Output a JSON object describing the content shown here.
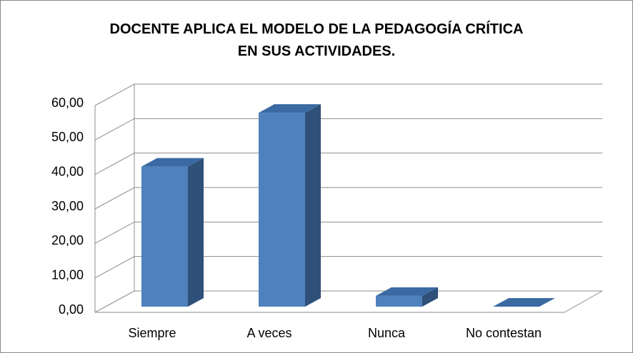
{
  "chart_data": {
    "type": "bar3d",
    "title": "DOCENTE APLICA EL MODELO DE LA PEDAGOGÍA CRÍTICA EN SUS ACTIVIDADES.",
    "categories": [
      "Siempre",
      "A veces",
      "Nunca",
      "No contestan"
    ],
    "values": [
      40.63,
      56.25,
      3.13,
      0
    ],
    "color": "#4f81bd",
    "ylim": [
      0,
      60
    ],
    "yticks": [
      {
        "value": 0,
        "label": "0,00"
      },
      {
        "value": 10,
        "label": "10,00"
      },
      {
        "value": 20,
        "label": "20,00"
      },
      {
        "value": 30,
        "label": "30,00"
      },
      {
        "value": 40,
        "label": "40,00"
      },
      {
        "value": 50,
        "label": "50,00"
      },
      {
        "value": 60,
        "label": "60,00"
      }
    ],
    "grid": true
  }
}
